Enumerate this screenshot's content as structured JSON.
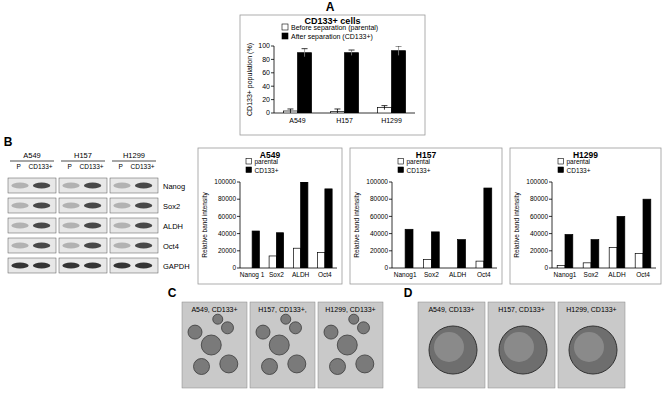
{
  "panel_labels": [
    "A",
    "B",
    "C",
    "D"
  ],
  "chart_data": [
    {
      "type": "bar",
      "title": "CD133+ cells",
      "y_label": "CD133+ population (%)",
      "categories": [
        "A549",
        "H157",
        "H1299"
      ],
      "series": [
        {
          "name": "Before separation (parental)",
          "color": "#ffffff",
          "values": [
            3,
            2,
            8
          ],
          "errors": [
            3,
            4,
            3
          ]
        },
        {
          "name": "After separation (CD133+)",
          "color": "#000000",
          "values": [
            90,
            90,
            93
          ],
          "errors": [
            6,
            4,
            7
          ]
        }
      ],
      "ylim": [
        0,
        100
      ],
      "yticks": [
        0,
        20,
        40,
        60,
        80,
        100
      ],
      "grid": false,
      "legend": "top-left"
    },
    {
      "type": "bar",
      "title": "A549",
      "y_label": "Relative band intensity",
      "categories": [
        "Nanog 1",
        "Sox2",
        "ALDH",
        "Oct4"
      ],
      "series": [
        {
          "name": "parental",
          "color": "#ffffff",
          "values": [
            0,
            14000,
            23000,
            18000
          ]
        },
        {
          "name": "CD133+",
          "color": "#000000",
          "values": [
            43000,
            41000,
            100000,
            92000
          ]
        }
      ],
      "ylim": [
        0,
        100000
      ],
      "yticks": [
        0,
        20000,
        40000,
        60000,
        80000,
        100000
      ],
      "grid": false,
      "legend": "top-left"
    },
    {
      "type": "bar",
      "title": "H157",
      "y_label": "Relative band intensity",
      "categories": [
        "Nanog1",
        "Sox2",
        "ALDH",
        "Oct4"
      ],
      "series": [
        {
          "name": "parental",
          "color": "#ffffff",
          "values": [
            0,
            10000,
            0,
            8000
          ]
        },
        {
          "name": "CD133+",
          "color": "#000000",
          "values": [
            45000,
            42000,
            33000,
            93000
          ]
        }
      ],
      "ylim": [
        0,
        100000
      ],
      "yticks": [
        0,
        20000,
        40000,
        60000,
        80000,
        100000
      ],
      "grid": false,
      "legend": "top-left"
    },
    {
      "type": "bar",
      "title": "H1299",
      "y_label": "Relative band intensity",
      "categories": [
        "Nanog1",
        "Sox2",
        "ALDH",
        "Oct4"
      ],
      "series": [
        {
          "name": "parental",
          "color": "#ffffff",
          "values": [
            3000,
            6000,
            24000,
            17000
          ]
        },
        {
          "name": "CD133+",
          "color": "#000000",
          "values": [
            39000,
            33000,
            60000,
            80000
          ]
        }
      ],
      "ylim": [
        0,
        100000
      ],
      "yticks": [
        0,
        20000,
        40000,
        60000,
        80000,
        100000
      ],
      "grid": false,
      "legend": "top-left"
    }
  ],
  "blot": {
    "cell_lines": [
      "A549",
      "H157",
      "H1299"
    ],
    "lanes": [
      "P",
      "CD133+"
    ],
    "proteins": [
      "Nanog",
      "Sox2",
      "ALDH",
      "Oct4",
      "GAPDH"
    ]
  },
  "sphere_images_c": [
    "A549, CD133+",
    "H157, CD133+,",
    "H1299, CD133+"
  ],
  "sphere_images_d": [
    "A549, CD133+",
    "H157, CD133+",
    "H1299, CD133+"
  ]
}
